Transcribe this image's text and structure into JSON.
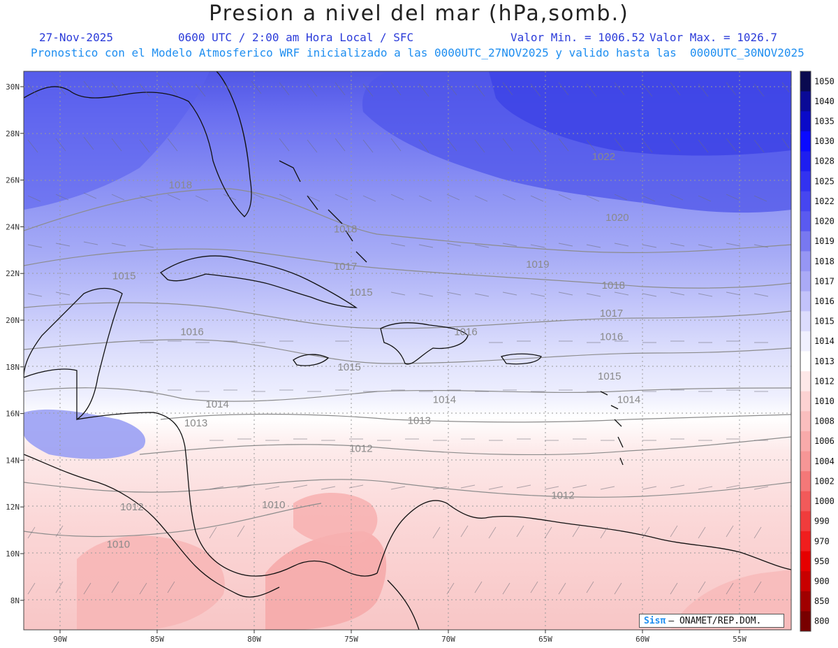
{
  "header": {
    "title": "Presion a nivel del mar (hPa,somb.)",
    "date": "27-Nov-2025",
    "time_text": "0600 UTC / 2:00 am Hora Local / SFC",
    "min_text": "Valor Min. = 1006.52",
    "max_text": "Valor Max. = 1026.7",
    "forecast_text": "Pronostico con el Modelo Atmosferico WRF inicializado a las 0000UTC_27NOV2025 y valido hasta las  0000UTC_30NOV2025"
  },
  "map": {
    "lon_labels": [
      "90W",
      "85W",
      "80W",
      "75W",
      "70W",
      "65W",
      "60W",
      "55W"
    ],
    "lat_labels": [
      "30N",
      "28N",
      "26N",
      "24N",
      "22N",
      "20N",
      "18N",
      "16N",
      "14N",
      "12N",
      "10N",
      "8N"
    ],
    "contour_labels": [
      {
        "text": "1022",
        "lon": -62.0,
        "lat": 27.0
      },
      {
        "text": "1020",
        "lon": -61.3,
        "lat": 24.4
      },
      {
        "text": "1019",
        "lon": -65.4,
        "lat": 22.4
      },
      {
        "text": "1018",
        "lon": -61.5,
        "lat": 21.5
      },
      {
        "text": "1018",
        "lon": -75.3,
        "lat": 23.9
      },
      {
        "text": "1018",
        "lon": -83.8,
        "lat": 25.8
      },
      {
        "text": "1017",
        "lon": -61.6,
        "lat": 20.3
      },
      {
        "text": "1017",
        "lon": -75.3,
        "lat": 22.3
      },
      {
        "text": "1016",
        "lon": -61.6,
        "lat": 19.3
      },
      {
        "text": "1016",
        "lon": -83.2,
        "lat": 19.5
      },
      {
        "text": "1016",
        "lon": -69.1,
        "lat": 19.5
      },
      {
        "text": "1015",
        "lon": -74.5,
        "lat": 21.2
      },
      {
        "text": "1015",
        "lon": -61.7,
        "lat": 17.6
      },
      {
        "text": "1015",
        "lon": -75.1,
        "lat": 18.0
      },
      {
        "text": "1015",
        "lon": -86.7,
        "lat": 21.9
      },
      {
        "text": "1014",
        "lon": -81.9,
        "lat": 16.4
      },
      {
        "text": "1014",
        "lon": -70.2,
        "lat": 16.6
      },
      {
        "text": "1014",
        "lon": -60.7,
        "lat": 16.6
      },
      {
        "text": "1013",
        "lon": -83.0,
        "lat": 15.6
      },
      {
        "text": "1013",
        "lon": -71.5,
        "lat": 15.7
      },
      {
        "text": "1012",
        "lon": -74.5,
        "lat": 14.5
      },
      {
        "text": "1012",
        "lon": -64.1,
        "lat": 12.5
      },
      {
        "text": "1012",
        "lon": -86.3,
        "lat": 12.0
      },
      {
        "text": "1010",
        "lon": -79.0,
        "lat": 12.1
      },
      {
        "text": "1010",
        "lon": -87.0,
        "lat": 10.4
      }
    ]
  },
  "colorbar": {
    "levels": [
      "1050",
      "1040",
      "1035",
      "1030",
      "1028",
      "1025",
      "1022",
      "1020",
      "1019",
      "1018",
      "1017",
      "1016",
      "1015",
      "1014",
      "1013",
      "1012",
      "1010",
      "1008",
      "1006",
      "1004",
      "1002",
      "1000",
      "990",
      "970",
      "950",
      "900",
      "850",
      "800"
    ],
    "colors": [
      "#0a0a50",
      "#0a0a96",
      "#0a0ac8",
      "#0a0aff",
      "#1e1ef0",
      "#3232f0",
      "#4646f0",
      "#5a5af0",
      "#7878f0",
      "#9696f4",
      "#aaaaf6",
      "#c3c3fa",
      "#dcdcfc",
      "#f0f0fe",
      "#ffffff",
      "#fde8e8",
      "#fcd2d2",
      "#fabebe",
      "#f8aaaa",
      "#f69696",
      "#f47878",
      "#f25a5a",
      "#f03c3c",
      "#f01e1e",
      "#e60000",
      "#c80000",
      "#a00000",
      "#780000"
    ]
  },
  "credit": {
    "logo": "Sis",
    "logo_pi": "π",
    "org": "– ONAMET/REP.DOM."
  }
}
